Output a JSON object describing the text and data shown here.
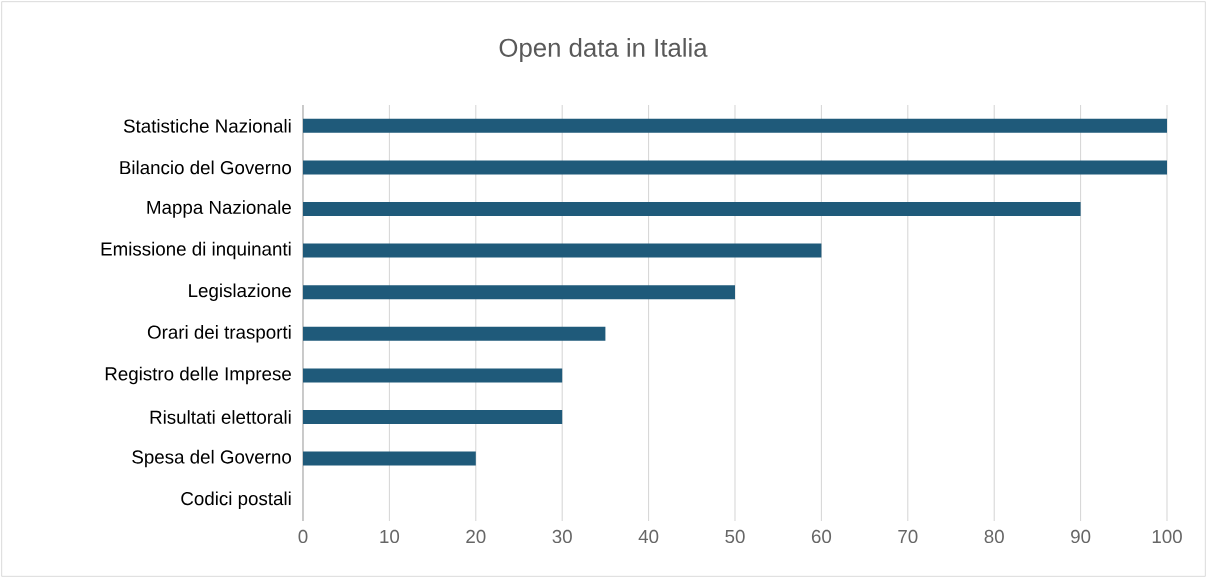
{
  "chart_data": {
    "type": "bar",
    "orientation": "horizontal",
    "title": "Open data in Italia",
    "categories": [
      "Statistiche Nazionali",
      "Bilancio del Governo",
      "Mappa Nazionale",
      "Emissione di inquinanti",
      "Legislazione",
      "Orari dei trasporti",
      "Registro delle Imprese",
      "Risultati elettorali",
      "Spesa del Governo",
      "Codici postali"
    ],
    "values": [
      100,
      100,
      90,
      60,
      50,
      35,
      30,
      30,
      20,
      0
    ],
    "color": "#1f5a7a",
    "xlim": [
      0,
      100
    ],
    "xticks": [
      0,
      10,
      20,
      30,
      40,
      50,
      60,
      70,
      80,
      90,
      100
    ],
    "grid": "x"
  }
}
